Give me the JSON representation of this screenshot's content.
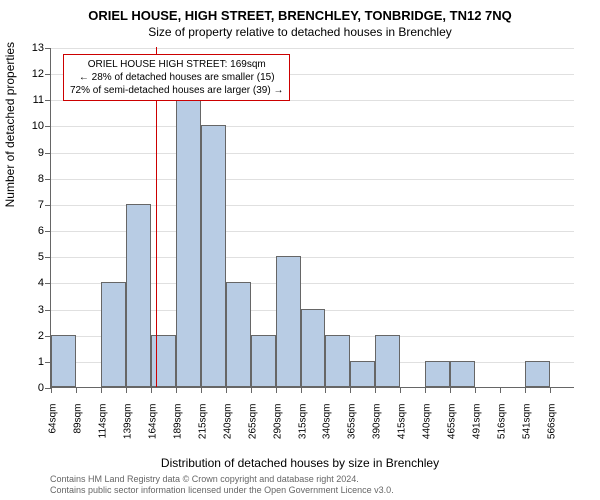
{
  "chart": {
    "type": "histogram",
    "title_main": "ORIEL HOUSE, HIGH STREET, BRENCHLEY, TONBRIDGE, TN12 7NQ",
    "title_sub": "Size of property relative to detached houses in Brenchley",
    "y_axis_label": "Number of detached properties",
    "x_axis_label": "Distribution of detached houses by size in Brenchley",
    "y_ticks": [
      0,
      1,
      2,
      3,
      4,
      5,
      6,
      7,
      8,
      9,
      10,
      11,
      12,
      13
    ],
    "ylim": [
      0,
      13
    ],
    "x_tick_labels": [
      "64sqm",
      "89sqm",
      "114sqm",
      "139sqm",
      "164sqm",
      "189sqm",
      "215sqm",
      "240sqm",
      "265sqm",
      "290sqm",
      "315sqm",
      "340sqm",
      "365sqm",
      "390sqm",
      "415sqm",
      "440sqm",
      "465sqm",
      "491sqm",
      "516sqm",
      "541sqm",
      "566sqm"
    ],
    "bars": [
      {
        "height": 2
      },
      {
        "height": 0
      },
      {
        "height": 4
      },
      {
        "height": 7
      },
      {
        "height": 2
      },
      {
        "height": 11
      },
      {
        "height": 10
      },
      {
        "height": 4
      },
      {
        "height": 2
      },
      {
        "height": 5
      },
      {
        "height": 3
      },
      {
        "height": 2
      },
      {
        "height": 1
      },
      {
        "height": 2
      },
      {
        "height": 0
      },
      {
        "height": 1
      },
      {
        "height": 1
      },
      {
        "height": 0
      },
      {
        "height": 0
      },
      {
        "height": 1
      },
      {
        "height": 0
      }
    ],
    "bar_color": "#b8cce4",
    "bar_border_color": "#666666",
    "reference_line_color": "#cc0000",
    "reference_line_position": 4.2,
    "annotation": {
      "line1": "ORIEL HOUSE HIGH STREET: 169sqm",
      "line2": "← 28% of detached houses are smaller (15)",
      "line3": "72% of semi-detached houses are larger (39) →"
    },
    "footer_line1": "Contains HM Land Registry data © Crown copyright and database right 2024.",
    "footer_line2": "Contains public sector information licensed under the Open Government Licence v3.0.",
    "background_color": "#ffffff",
    "grid_color": "#e0e0e0",
    "label_fontsize": 11
  }
}
